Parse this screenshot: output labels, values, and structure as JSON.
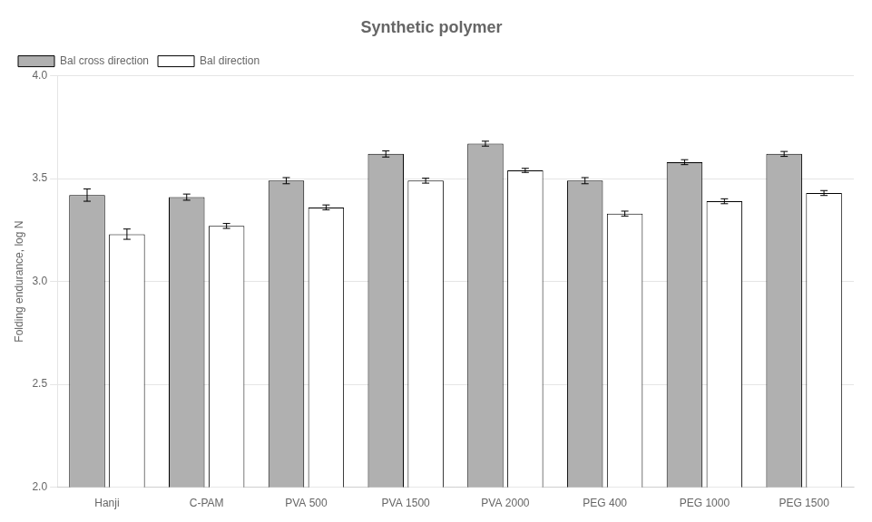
{
  "chart_data": {
    "type": "bar",
    "title": "Synthetic polymer",
    "ylabel": "Folding endurance, log N",
    "categories": [
      "Hanji",
      "C-PAM",
      "PVA 500",
      "PVA 1500",
      "PVA 2000",
      "PEG 400",
      "PEG 1000",
      "PEG 1500"
    ],
    "series": [
      {
        "name": "Bal cross direction",
        "color": "#b0b0b0",
        "values": [
          3.42,
          3.41,
          3.49,
          3.62,
          3.67,
          3.49,
          3.58,
          3.62
        ],
        "errors": [
          0.03,
          0.015,
          0.015,
          0.015,
          0.012,
          0.015,
          0.012,
          0.012
        ]
      },
      {
        "name": "Bal direction",
        "color": "#ffffff",
        "values": [
          3.23,
          3.27,
          3.36,
          3.49,
          3.54,
          3.33,
          3.39,
          3.43
        ],
        "errors": [
          0.025,
          0.012,
          0.012,
          0.012,
          0.01,
          0.012,
          0.012,
          0.012
        ]
      }
    ],
    "ylim": [
      2.0,
      4.0
    ],
    "yticks": [
      {
        "value": 2.0,
        "label": "2.0"
      },
      {
        "value": 2.5,
        "label": "2.5"
      },
      {
        "value": 3.0,
        "label": "3.0"
      },
      {
        "value": 3.5,
        "label": "3.5"
      },
      {
        "value": 4.0,
        "label": "4.0"
      }
    ],
    "grid": true,
    "legend": "upper left"
  }
}
